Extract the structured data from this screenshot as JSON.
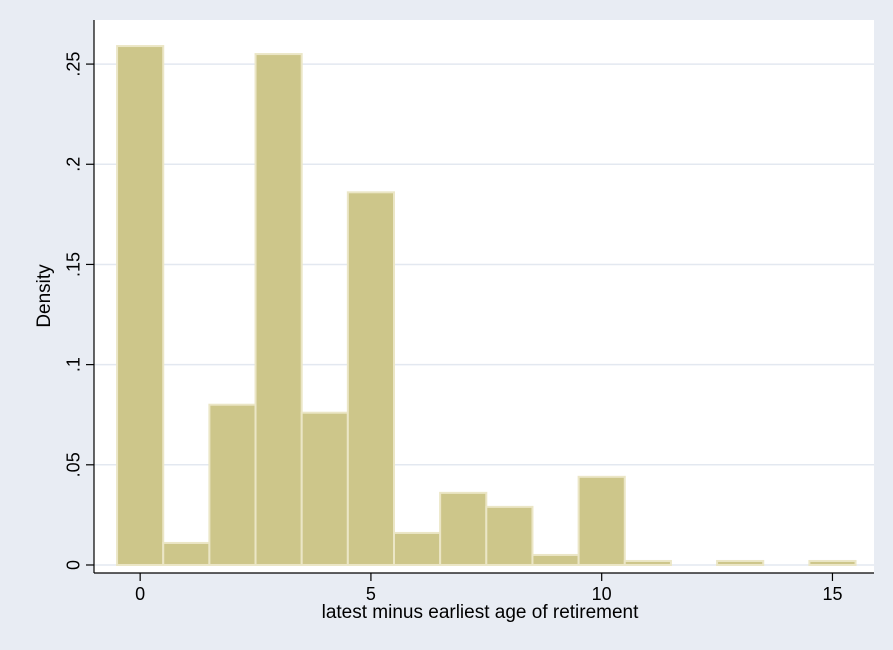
{
  "chart_data": {
    "type": "bar",
    "title": "",
    "xlabel": "latest minus earliest age of retirement",
    "ylabel": "Density",
    "xlim": [
      -1.0,
      15.9
    ],
    "ylim": [
      -0.004,
      0.272
    ],
    "x_ticks": [
      0,
      5,
      10,
      15
    ],
    "x_tick_labels": [
      "0",
      "5",
      "10",
      "15"
    ],
    "y_ticks": [
      0,
      0.05,
      0.1,
      0.15,
      0.2,
      0.25
    ],
    "y_tick_labels": [
      "0",
      ".05",
      ".1",
      ".15",
      ".2",
      ".25"
    ],
    "grid": true,
    "bin_width": 1,
    "bins": [
      {
        "x": 0,
        "density": 0.259
      },
      {
        "x": 1,
        "density": 0.011
      },
      {
        "x": 2,
        "density": 0.08
      },
      {
        "x": 3,
        "density": 0.255
      },
      {
        "x": 4,
        "density": 0.076
      },
      {
        "x": 5,
        "density": 0.186
      },
      {
        "x": 6,
        "density": 0.016
      },
      {
        "x": 7,
        "density": 0.036
      },
      {
        "x": 8,
        "density": 0.029
      },
      {
        "x": 9,
        "density": 0.005
      },
      {
        "x": 10,
        "density": 0.044
      },
      {
        "x": 11,
        "density": 0.002
      },
      {
        "x": 12,
        "density": 0.0
      },
      {
        "x": 13,
        "density": 0.002
      },
      {
        "x": 14,
        "density": 0.0
      },
      {
        "x": 15,
        "density": 0.002
      }
    ],
    "colors": {
      "bar_fill": "#cdc68a",
      "bar_outline": "#ebe6c6",
      "plot_background": "#ffffff",
      "outer_background": "#e8ecf3",
      "grid": "#e3e8f0"
    }
  }
}
